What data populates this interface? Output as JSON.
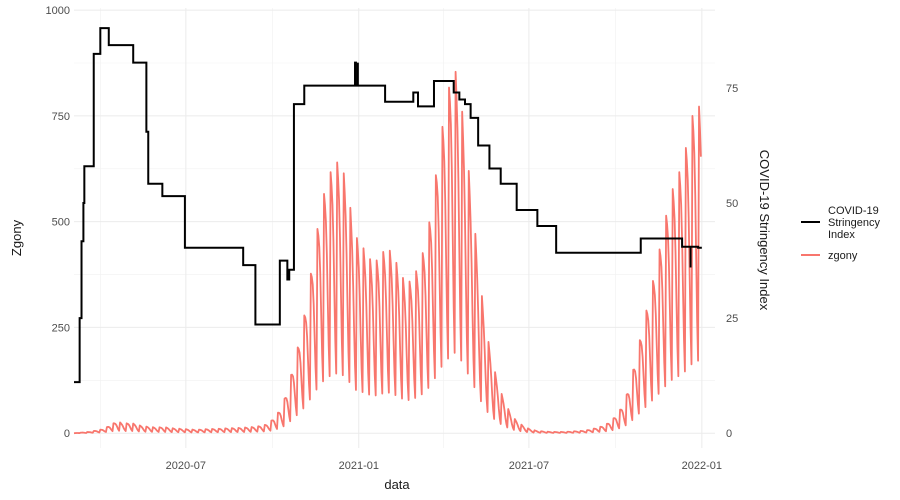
{
  "chart_data": {
    "type": "line",
    "xlabel": "data",
    "ylabel_left": "Zgony",
    "ylabel_right": "COVID-19 Stringency Index",
    "x_ticks": [
      "2020-07",
      "2021-01",
      "2021-07",
      "2022-01"
    ],
    "x_range": [
      "2020-03-04",
      "2022-01-15"
    ],
    "y_left_ticks": [
      0,
      250,
      500,
      750,
      1000
    ],
    "y_left_range": [
      -35,
      1005
    ],
    "y_right_ticks": [
      0,
      25,
      50,
      75
    ],
    "y_right_scale_note": "right axis spans 0–100 over 0–1088 of left axis",
    "grid": true,
    "legend_position": "right",
    "legend": [
      {
        "name": "COVID-19\nStringency\nIndex",
        "color": "#000000"
      },
      {
        "name": "zgony",
        "color": "#f8766d"
      }
    ],
    "series": [
      {
        "name": "COVID-19 Stringency Index",
        "color": "#000000",
        "axis": "right",
        "step": true,
        "points": [
          [
            "2020-03-04",
            11.1
          ],
          [
            "2020-03-10",
            25.0
          ],
          [
            "2020-03-12",
            41.7
          ],
          [
            "2020-03-14",
            50.0
          ],
          [
            "2020-03-15",
            58.0
          ],
          [
            "2020-03-25",
            82.4
          ],
          [
            "2020-04-01",
            88.0
          ],
          [
            "2020-04-10",
            84.3
          ],
          [
            "2020-05-06",
            80.5
          ],
          [
            "2020-05-20",
            65.5
          ],
          [
            "2020-05-22",
            54.2
          ],
          [
            "2020-06-06",
            51.5
          ],
          [
            "2020-06-30",
            40.3
          ],
          [
            "2020-08-31",
            36.5
          ],
          [
            "2020-09-13",
            23.6
          ],
          [
            "2020-10-09",
            37.5
          ],
          [
            "2020-10-17",
            33.4
          ],
          [
            "2020-10-19",
            35.5
          ],
          [
            "2020-10-24",
            71.5
          ],
          [
            "2020-11-04",
            75.5
          ],
          [
            "2020-12-28",
            80.5
          ],
          [
            "2020-12-29",
            75.5
          ],
          [
            "2021-01-29",
            72.0
          ],
          [
            "2021-02-28",
            74.0
          ],
          [
            "2021-03-05",
            71.0
          ],
          [
            "2021-03-22",
            76.5
          ],
          [
            "2021-04-12",
            74.0
          ],
          [
            "2021-04-18",
            72.5
          ],
          [
            "2021-04-24",
            71.5
          ],
          [
            "2021-04-30",
            68.5
          ],
          [
            "2021-05-08",
            62.5
          ],
          [
            "2021-05-20",
            57.5
          ],
          [
            "2021-06-01",
            54.2
          ],
          [
            "2021-06-18",
            48.5
          ],
          [
            "2021-07-10",
            45.0
          ],
          [
            "2021-07-30",
            39.2
          ],
          [
            "2021-10-28",
            42.3
          ],
          [
            "2021-12-11",
            40.5
          ],
          [
            "2021-12-28",
            40.3
          ],
          [
            "2022-01-01",
            40.3
          ]
        ],
        "spikes": [
          [
            "2020-12-31",
            80.5,
            75.5
          ],
          [
            "2021-12-20",
            40.5,
            36.0
          ]
        ]
      },
      {
        "name": "zgony",
        "color": "#f8766d",
        "axis": "left",
        "points": [
          [
            "2020-03-04",
            0
          ],
          [
            "2020-03-20",
            3
          ],
          [
            "2020-04-05",
            10
          ],
          [
            "2020-04-12",
            20
          ],
          [
            "2020-04-19",
            28
          ],
          [
            "2020-04-26",
            22
          ],
          [
            "2020-05-03",
            25
          ],
          [
            "2020-05-10",
            20
          ],
          [
            "2020-05-17",
            16
          ],
          [
            "2020-05-24",
            15
          ],
          [
            "2020-05-31",
            13
          ],
          [
            "2020-06-07",
            15
          ],
          [
            "2020-06-14",
            12
          ],
          [
            "2020-06-21",
            11
          ],
          [
            "2020-06-28",
            10
          ],
          [
            "2020-07-05",
            9
          ],
          [
            "2020-07-12",
            8
          ],
          [
            "2020-07-19",
            9
          ],
          [
            "2020-07-26",
            10
          ],
          [
            "2020-08-02",
            10
          ],
          [
            "2020-08-09",
            11
          ],
          [
            "2020-08-16",
            12
          ],
          [
            "2020-08-23",
            12
          ],
          [
            "2020-08-30",
            13
          ],
          [
            "2020-09-06",
            14
          ],
          [
            "2020-09-13",
            15
          ],
          [
            "2020-09-20",
            18
          ],
          [
            "2020-09-27",
            22
          ],
          [
            "2020-10-04",
            40
          ],
          [
            "2020-10-11",
            60
          ],
          [
            "2020-10-18",
            110
          ],
          [
            "2020-10-25",
            175
          ],
          [
            "2020-11-01",
            240
          ],
          [
            "2020-11-08",
            330
          ],
          [
            "2020-11-15",
            440
          ],
          [
            "2020-11-22",
            540
          ],
          [
            "2020-11-29",
            600
          ],
          [
            "2020-12-06",
            640
          ],
          [
            "2020-12-13",
            640
          ],
          [
            "2020-12-20",
            580
          ],
          [
            "2020-12-27",
            470
          ],
          [
            "2021-01-03",
            450
          ],
          [
            "2021-01-10",
            420
          ],
          [
            "2021-01-17",
            400
          ],
          [
            "2021-01-24",
            420
          ],
          [
            "2021-01-31",
            440
          ],
          [
            "2021-02-07",
            420
          ],
          [
            "2021-02-14",
            380
          ],
          [
            "2021-02-21",
            350
          ],
          [
            "2021-02-28",
            370
          ],
          [
            "2021-03-07",
            400
          ],
          [
            "2021-03-14",
            460
          ],
          [
            "2021-03-21",
            550
          ],
          [
            "2021-03-28",
            690
          ],
          [
            "2021-04-04",
            770
          ],
          [
            "2021-04-11",
            880
          ],
          [
            "2021-04-18",
            820
          ],
          [
            "2021-04-25",
            680
          ],
          [
            "2021-05-02",
            540
          ],
          [
            "2021-05-09",
            380
          ],
          [
            "2021-05-16",
            250
          ],
          [
            "2021-05-23",
            170
          ],
          [
            "2021-05-30",
            110
          ],
          [
            "2021-06-06",
            70
          ],
          [
            "2021-06-13",
            40
          ],
          [
            "2021-06-20",
            25
          ],
          [
            "2021-06-27",
            14
          ],
          [
            "2021-07-04",
            8
          ],
          [
            "2021-07-11",
            5
          ],
          [
            "2021-07-18",
            4
          ],
          [
            "2021-07-25",
            3
          ],
          [
            "2021-08-01",
            3
          ],
          [
            "2021-08-08",
            3
          ],
          [
            "2021-08-15",
            4
          ],
          [
            "2021-08-22",
            5
          ],
          [
            "2021-08-29",
            6
          ],
          [
            "2021-09-05",
            9
          ],
          [
            "2021-09-12",
            13
          ],
          [
            "2021-09-19",
            18
          ],
          [
            "2021-09-26",
            28
          ],
          [
            "2021-10-03",
            45
          ],
          [
            "2021-10-10",
            70
          ],
          [
            "2021-10-17",
            120
          ],
          [
            "2021-10-24",
            190
          ],
          [
            "2021-10-31",
            260
          ],
          [
            "2021-11-07",
            330
          ],
          [
            "2021-11-14",
            400
          ],
          [
            "2021-11-21",
            480
          ],
          [
            "2021-11-28",
            560
          ],
          [
            "2021-12-05",
            600
          ],
          [
            "2021-12-12",
            640
          ],
          [
            "2021-12-19",
            720
          ],
          [
            "2021-12-26",
            790
          ],
          [
            "2021-12-31",
            760
          ]
        ]
      }
    ]
  }
}
